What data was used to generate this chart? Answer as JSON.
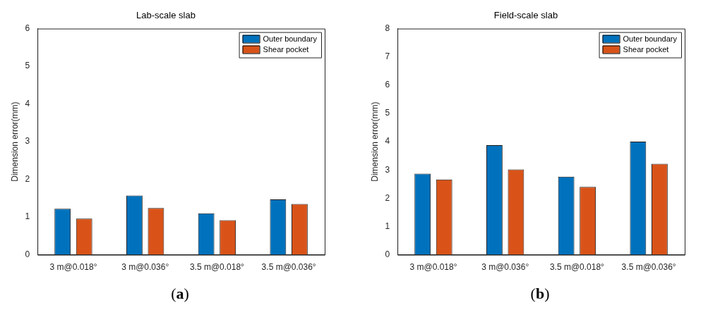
{
  "chart_data": [
    {
      "type": "bar",
      "title": "Lab-scale slab",
      "ylabel": "Dimension error(mm)",
      "categories": [
        "3 m@0.018°",
        "3 m@0.036°",
        "3.5 m@0.018°",
        "3.5 m@0.036°"
      ],
      "series": [
        {
          "name": "Outer boundary",
          "color": "#0072bd",
          "values": [
            1.22,
            1.57,
            1.1,
            1.47
          ]
        },
        {
          "name": "Shear pocket",
          "color": "#d95319",
          "values": [
            0.96,
            1.24,
            0.92,
            1.35
          ]
        }
      ],
      "ylim": [
        0,
        6
      ],
      "yticks": [
        0,
        1,
        2,
        3,
        4,
        5,
        6
      ],
      "grid": false,
      "legend": "top right",
      "annotations": [
        "(a)"
      ]
    },
    {
      "type": "bar",
      "title": "Field-scale slab",
      "ylabel": "Dimension error(mm)",
      "categories": [
        "3 m@0.018°",
        "3 m@0.036°",
        "3.5 m@0.018°",
        "3.5 m@0.036°"
      ],
      "series": [
        {
          "name": "Outer boundary",
          "color": "#0072bd",
          "values": [
            2.87,
            3.88,
            2.76,
            4.0
          ]
        },
        {
          "name": "Shear pocket",
          "color": "#d95319",
          "values": [
            2.66,
            3.02,
            2.4,
            3.22
          ]
        }
      ],
      "ylim": [
        0,
        8
      ],
      "yticks": [
        0,
        1,
        2,
        3,
        4,
        5,
        6,
        7,
        8
      ],
      "grid": false,
      "legend": "top right",
      "annotations": [
        "(b)"
      ]
    }
  ]
}
